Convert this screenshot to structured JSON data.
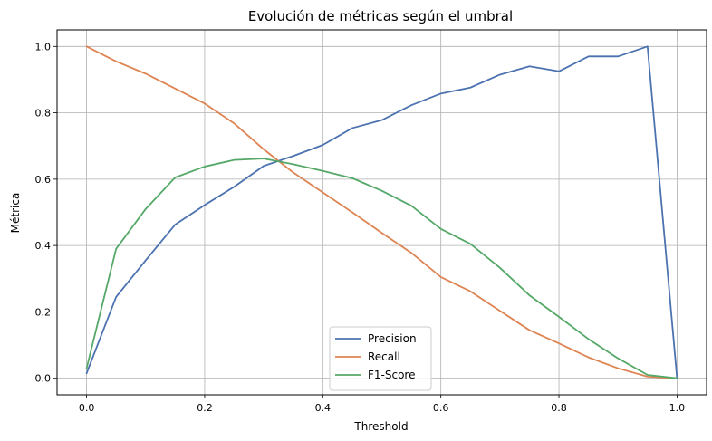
{
  "chart_data": {
    "type": "line",
    "title": "Evolución de métricas según el umbral",
    "xlabel": "Threshold",
    "ylabel": "Métrica",
    "xlim": [
      -0.05,
      1.05
    ],
    "ylim": [
      -0.05,
      1.05
    ],
    "grid": true,
    "legend_position": "bottom-center",
    "x_ticks": [
      0.0,
      0.2,
      0.4,
      0.6,
      0.8,
      1.0
    ],
    "y_ticks": [
      0.0,
      0.2,
      0.4,
      0.6,
      0.8,
      1.0
    ],
    "x_tick_labels": [
      "0.0",
      "0.2",
      "0.4",
      "0.6",
      "0.8",
      "1.0"
    ],
    "y_tick_labels": [
      "0.0",
      "0.2",
      "0.4",
      "0.6",
      "0.8",
      "1.0"
    ],
    "x": [
      0.0,
      0.05,
      0.1,
      0.15,
      0.2,
      0.25,
      0.3,
      0.35,
      0.4,
      0.45,
      0.5,
      0.55,
      0.6,
      0.65,
      0.7,
      0.75,
      0.8,
      0.85,
      0.9,
      0.95,
      1.0
    ],
    "series": [
      {
        "name": "Precision",
        "color": "#4c72b0",
        "values": [
          0.015,
          0.245,
          0.355,
          0.463,
          0.522,
          0.577,
          0.64,
          0.67,
          0.703,
          0.754,
          0.778,
          0.823,
          0.858,
          0.876,
          0.915,
          0.94,
          0.925,
          0.97,
          0.97,
          1.0,
          0.0
        ]
      },
      {
        "name": "Recall",
        "color": "#dd8452",
        "values": [
          1.0,
          0.955,
          0.918,
          0.873,
          0.828,
          0.768,
          0.69,
          0.62,
          0.56,
          0.5,
          0.438,
          0.378,
          0.305,
          0.262,
          0.203,
          0.145,
          0.105,
          0.063,
          0.03,
          0.005,
          0.0
        ]
      },
      {
        "name": "F1-Score",
        "color": "#55a868",
        "values": [
          0.03,
          0.39,
          0.51,
          0.605,
          0.638,
          0.658,
          0.662,
          0.645,
          0.625,
          0.603,
          0.565,
          0.52,
          0.45,
          0.405,
          0.333,
          0.25,
          0.185,
          0.118,
          0.06,
          0.01,
          0.0
        ]
      }
    ]
  }
}
